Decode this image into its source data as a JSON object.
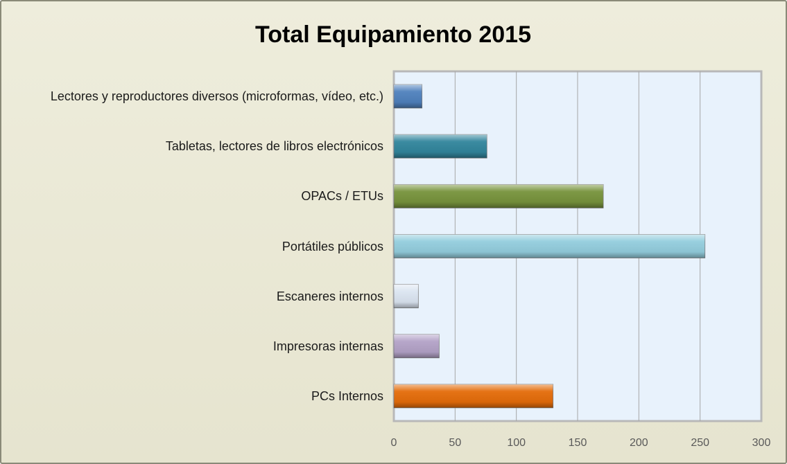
{
  "chart_data": {
    "type": "bar",
    "orientation": "horizontal",
    "title": "Total Equipamiento 2015",
    "categories": [
      "Lectores y reproductores diversos (microformas, vídeo, etc.)",
      "Tabletas, lectores de libros electrónicos",
      "OPACs / ETUs",
      "Portátiles públicos",
      "Escaneres internos",
      "Impresoras internas",
      "PCs Internos"
    ],
    "values": [
      23,
      76,
      171,
      254,
      20,
      37,
      130
    ],
    "colors": [
      "#4f81bd",
      "#31859c",
      "#77933c",
      "#93cddd",
      "#dbe5f1",
      "#b3a2c7",
      "#e46c0a"
    ],
    "xlim": [
      0,
      300
    ],
    "xticks": [
      0,
      50,
      100,
      150,
      200,
      250,
      300
    ],
    "grid": true
  }
}
